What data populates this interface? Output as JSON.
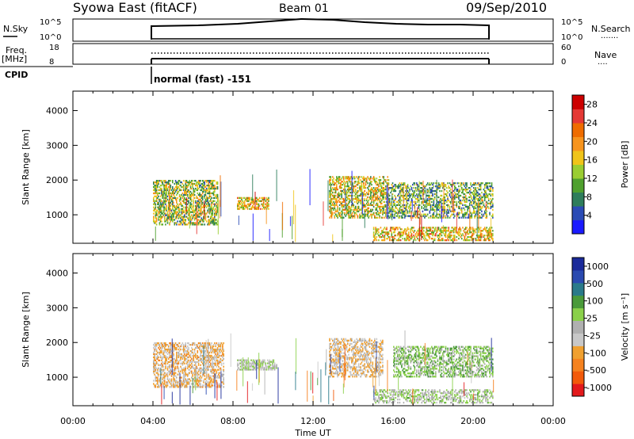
{
  "header": {
    "station": "Syowa East (fitACF)",
    "beam": "Beam 01",
    "date": "09/Sep/2010"
  },
  "nsky_panel": {
    "left_label": "N.Sky",
    "left_ticks": [
      "10^5",
      "10^0"
    ],
    "right_ticks": [
      "10^5",
      "10^0"
    ],
    "right_label": "N.Search",
    "right_dots": "......."
  },
  "freq_panel": {
    "left_label_1": "Freq.",
    "left_label_2": "[MHz]",
    "left_ticks": [
      "18",
      "8"
    ],
    "right_ticks": [
      "60",
      "0"
    ],
    "right_label": "Nave",
    "right_dots": "...."
  },
  "cpid": {
    "label": "CPID",
    "text": "normal (fast) -151"
  },
  "colors": {
    "power": [
      "#1a1aff",
      "#2b4bb5",
      "#2e7d5b",
      "#4fa02e",
      "#9acd32",
      "#f0c419",
      "#f7941d",
      "#ef6c00",
      "#e53935",
      "#cc0000"
    ],
    "velocity": [
      "#e31a1c",
      "#f25a0a",
      "#f5821f",
      "#f0a030",
      "#c8c8c8",
      "#b0b0b0",
      "#8ad04a",
      "#4a9a3a",
      "#2a7a8a",
      "#2a4ab0",
      "#1a2a9a"
    ]
  },
  "chart_data": [
    {
      "type": "heatmap",
      "name": "power",
      "ylabel": "Slant Range [km]",
      "xlabel": "Time UT",
      "xlim": [
        0,
        24
      ],
      "ylim": [
        180,
        4560
      ],
      "x_ticks": [
        "00:00",
        "04:00",
        "08:00",
        "12:00",
        "16:00",
        "20:00",
        "00:00"
      ],
      "y_ticks": [
        1000,
        2000,
        3000,
        4000
      ],
      "data_extent_hours": [
        4,
        21
      ],
      "colorbar": {
        "label": "Power [dB]",
        "ticks": [
          "4",
          "8",
          "12",
          "16",
          "20",
          "24",
          "28"
        ],
        "range": [
          0,
          30
        ]
      },
      "regions": [
        {
          "t0": 4.0,
          "t1": 7.2,
          "r0": 700,
          "r1": 2000,
          "level": 6,
          "dens": 0.55,
          "bias": 1
        },
        {
          "t0": 8.2,
          "t1": 9.8,
          "r0": 1150,
          "r1": 1500,
          "level": 8,
          "dens": 0.6,
          "bias": 2
        },
        {
          "t0": 12.8,
          "t1": 15.8,
          "r0": 900,
          "r1": 2100,
          "level": 7,
          "dens": 0.5,
          "bias": 3
        },
        {
          "t0": 15.8,
          "t1": 21.0,
          "r0": 900,
          "r1": 1900,
          "level": 5,
          "dens": 0.45,
          "bias": 4
        },
        {
          "t0": 15.0,
          "t1": 21.0,
          "r0": 250,
          "r1": 650,
          "level": 8,
          "dens": 0.5,
          "bias": 5
        }
      ]
    },
    {
      "type": "heatmap",
      "name": "velocity",
      "ylabel": "Slant Range [km]",
      "xlabel": "Time UT",
      "xlim": [
        0,
        24
      ],
      "ylim": [
        180,
        4560
      ],
      "x_ticks": [
        "00:00",
        "04:00",
        "08:00",
        "12:00",
        "16:00",
        "20:00",
        "00:00"
      ],
      "y_ticks": [
        1000,
        2000,
        3000,
        4000
      ],
      "data_extent_hours": [
        4,
        21
      ],
      "colorbar": {
        "label": "Velocity [m s⁻¹]",
        "ticks": [
          "1000",
          "500",
          "100",
          "25",
          "-25",
          "-100",
          "-500",
          "-1000"
        ],
        "range": [
          -1000,
          1000
        ]
      },
      "regions": [
        {
          "t0": 4.0,
          "t1": 7.5,
          "r0": 700,
          "r1": 2000,
          "level": -300,
          "dens": 0.55,
          "bias": 6
        },
        {
          "t0": 8.2,
          "t1": 10.2,
          "r0": 1200,
          "r1": 1500,
          "level": 0,
          "dens": 0.6,
          "bias": 7
        },
        {
          "t0": 12.8,
          "t1": 15.5,
          "r0": 1000,
          "r1": 2100,
          "level": -250,
          "dens": 0.5,
          "bias": 8
        },
        {
          "t0": 16.0,
          "t1": 21.0,
          "r0": 1000,
          "r1": 1900,
          "level": 200,
          "dens": 0.45,
          "bias": 9
        },
        {
          "t0": 15.0,
          "t1": 21.0,
          "r0": 250,
          "r1": 650,
          "level": 80,
          "dens": 0.45,
          "bias": 10
        }
      ]
    }
  ]
}
